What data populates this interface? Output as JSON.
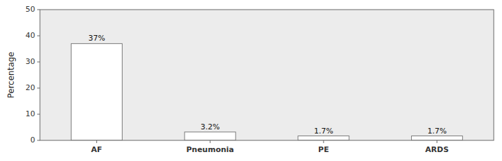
{
  "chart_data": {
    "type": "bar",
    "categories": [
      "AF",
      "Pneumonia",
      "PE",
      "ARDS"
    ],
    "values": [
      37,
      3.2,
      1.7,
      1.7
    ],
    "value_labels": [
      "37%",
      "3.2%",
      "1.7%",
      "1.7%"
    ],
    "data_labels": true,
    "color": "#ffffff",
    "ylabel": "Percentage",
    "ylim": [
      0,
      50
    ],
    "yticks": [
      0,
      10,
      20,
      30,
      40,
      50
    ],
    "grid": false
  }
}
